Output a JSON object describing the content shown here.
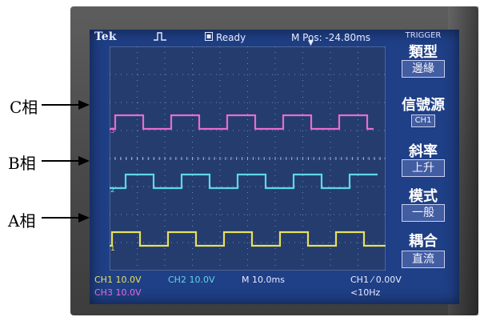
{
  "scope": {
    "brand": "Tek",
    "run_state": "Ready",
    "m_pos": "M Pos: -24.80ms",
    "menu_header": "TRIGGER",
    "menu": [
      {
        "title": "類型",
        "value": "邊緣"
      },
      {
        "title": "信號源",
        "value": "CH1"
      },
      {
        "title": "斜率",
        "value": "上升"
      },
      {
        "title": "模式",
        "value": "一般"
      },
      {
        "title": "耦合",
        "value": "直流"
      }
    ],
    "ch1_scale": "CH1  10.0V",
    "ch2_scale": "CH2  10.0V",
    "ch3_scale": "CH3  10.0V",
    "timebase": "M 10.0ms",
    "trigger_info": "CH1 ⁄ 0.00V",
    "frequency": "<10Hz",
    "channel_markers": [
      "3",
      "2",
      "1"
    ]
  },
  "labels": {
    "c_phase": "C相",
    "b_phase": "B相",
    "a_phase": "A相"
  },
  "colors": {
    "c_trace": "#e86bd4",
    "b_trace": "#5ed7e8",
    "a_trace": "#e8e05a",
    "screen": "#1f3f86",
    "bezel": "#4a4a4a"
  }
}
